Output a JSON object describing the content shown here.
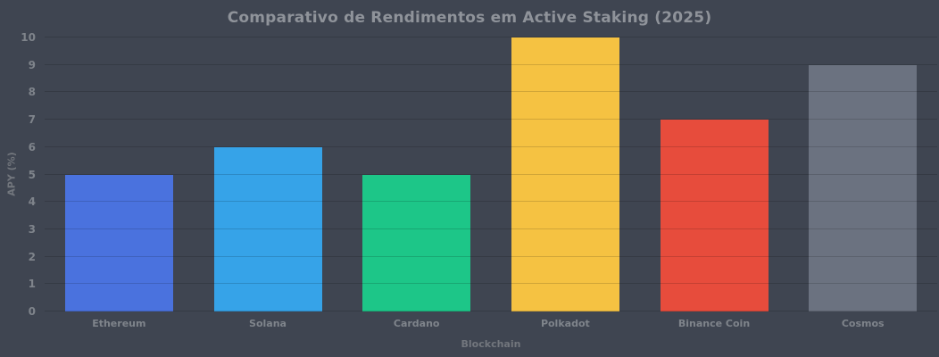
{
  "chart_data": {
    "type": "bar",
    "title": "Comparativo de Rendimentos em Active Staking (2025)",
    "xlabel": "Blockchain",
    "ylabel": "APY (%)",
    "categories": [
      "Ethereum",
      "Solana",
      "Cardano",
      "Polkadot",
      "Binance Coin",
      "Cosmos"
    ],
    "values": [
      5,
      6,
      5,
      10,
      7,
      9
    ],
    "bar_colors": [
      "#4a72de",
      "#36a3e8",
      "#1dc688",
      "#f5c242",
      "#e74c3c",
      "#6b7280"
    ],
    "ylim": [
      0,
      10
    ],
    "yticks": [
      0,
      1,
      2,
      3,
      4,
      5,
      6,
      7,
      8,
      9,
      10
    ],
    "grid": "horizontal",
    "legend_position": "none",
    "colors": {
      "background": "#3f4551",
      "title_text": "#8f939a",
      "tick_text": "#7f848b",
      "axis_label_text": "#72767d",
      "gridline": "rgba(0,0,0,0.15)"
    }
  }
}
